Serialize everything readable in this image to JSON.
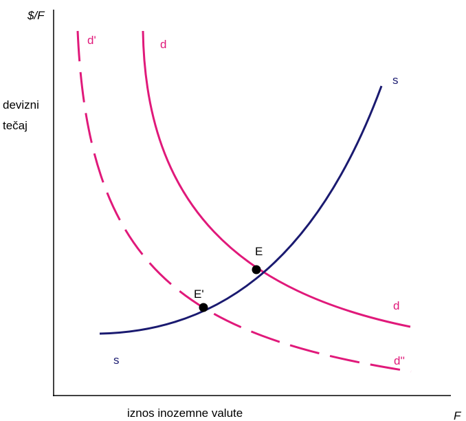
{
  "axes": {
    "y_unit": "$/F",
    "y_label_lines": [
      "devizni",
      "tečaj"
    ],
    "x_label": "iznos inozemne valute",
    "x_unit": "F"
  },
  "curves": {
    "d_prime_label": "d'",
    "d_top_label": "d",
    "d_bottom_label": "d",
    "d_double_prime_label": "d''",
    "s_top_label": "s",
    "s_bottom_label": "s"
  },
  "points": {
    "E": "E",
    "E_prime": "E'"
  }
}
